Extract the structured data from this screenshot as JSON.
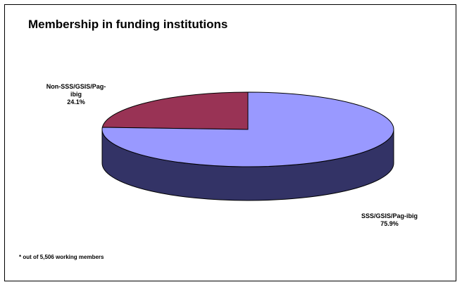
{
  "chart_data": {
    "type": "pie",
    "variant": "3d",
    "title": "Membership in funding institutions",
    "slices": [
      {
        "label_lines": [
          "Non-SSS/GSIS/Pag-",
          "ibig",
          "24.1%"
        ],
        "value": 24.1,
        "color": "#993355",
        "side_color": "#5a1e32"
      },
      {
        "label_lines": [
          "SSS/GSIS/Pag-ibig",
          "75.9%"
        ],
        "value": 75.9,
        "color": "#9999ff",
        "side_color": "#333366"
      }
    ],
    "footnote": "* out of 5,506 working members"
  }
}
